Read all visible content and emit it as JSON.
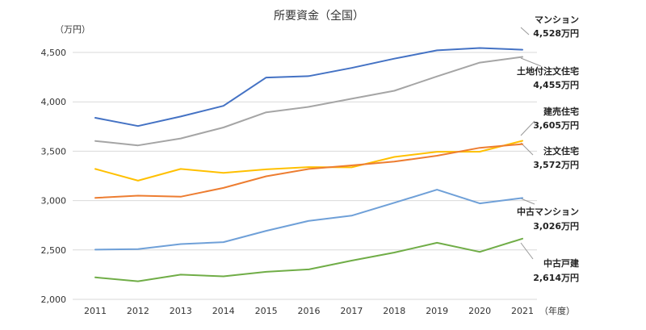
{
  "chart_data": {
    "type": "line",
    "title": "所要資金（全国）",
    "ylabel": "（万円）",
    "xlabel": "（年度）",
    "ylim": [
      2000,
      4500
    ],
    "yticks": [
      "2,000",
      "2,500",
      "3,000",
      "3,500",
      "4,000",
      "4,500"
    ],
    "ytick_values": [
      2000,
      2500,
      3000,
      3500,
      4000,
      4500
    ],
    "grid": true,
    "legend": "none",
    "categories": [
      "2011",
      "2012",
      "2013",
      "2014",
      "2015",
      "2016",
      "2017",
      "2018",
      "2019",
      "2020",
      "2021"
    ],
    "series": [
      {
        "name": "マンション",
        "color": "#4472c4",
        "values": [
          3838,
          3755,
          3851,
          3959,
          4246,
          4261,
          4343,
          4437,
          4521,
          4545,
          4528
        ],
        "annotation": {
          "name": "マンション",
          "value": "4,528万円"
        }
      },
      {
        "name": "土地付注文住宅",
        "color": "#a5a5a5",
        "values": [
          3604,
          3559,
          3629,
          3740,
          3894,
          3949,
          4031,
          4112,
          4257,
          4397,
          4455
        ],
        "annotation": {
          "name": "土地付注文住宅",
          "value": "4,455万円"
        }
      },
      {
        "name": "建売住宅",
        "color": "#ffc000",
        "values": [
          3320,
          3202,
          3320,
          3281,
          3316,
          3339,
          3337,
          3442,
          3494,
          3495,
          3605
        ],
        "annotation": {
          "name": "建売住宅",
          "value": "3,605万円"
        }
      },
      {
        "name": "注文住宅",
        "color": "#ed7d31",
        "values": [
          3028,
          3050,
          3039,
          3128,
          3246,
          3320,
          3356,
          3395,
          3454,
          3534,
          3572
        ],
        "annotation": {
          "name": "注文住宅",
          "value": "3,572万円"
        }
      },
      {
        "name": "中古マンション",
        "color": "#6fa0d8",
        "values": [
          2503,
          2508,
          2560,
          2579,
          2694,
          2795,
          2847,
          2978,
          3110,
          2971,
          3026
        ],
        "annotation": {
          "name": "中古マンション",
          "value": "3,026万円"
        }
      },
      {
        "name": "中古戸建",
        "color": "#70ad47",
        "values": [
          2222,
          2183,
          2250,
          2233,
          2279,
          2303,
          2392,
          2474,
          2573,
          2480,
          2614
        ],
        "annotation": {
          "name": "中古戸建",
          "value": "2,614万円"
        }
      }
    ]
  }
}
